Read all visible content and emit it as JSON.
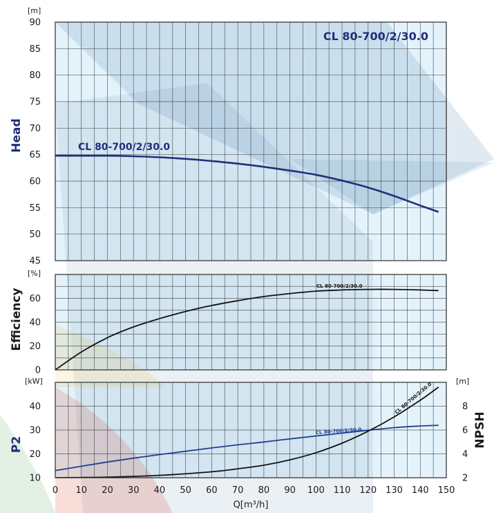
{
  "chart_data": {
    "type": "line",
    "model": "CL 80-700/2/30.0",
    "x_axis": {
      "label": "Q[m³/h]",
      "range": [
        0,
        150
      ],
      "ticks": [
        0,
        10,
        20,
        30,
        40,
        50,
        60,
        70,
        80,
        90,
        100,
        110,
        120,
        130,
        140,
        150
      ]
    },
    "panels": [
      {
        "id": "head",
        "ylabel": "Head",
        "unit": "[m]",
        "ylim": [
          45,
          90
        ],
        "yticks": [
          45,
          50,
          55,
          60,
          65,
          70,
          75,
          80,
          85,
          90
        ],
        "series": [
          {
            "name": "CL 80-700/2/30.0",
            "color": "#1f2f7a",
            "x": [
              0,
              10,
              20,
              30,
              40,
              50,
              60,
              70,
              80,
              90,
              100,
              110,
              120,
              130,
              140,
              147
            ],
            "y": [
              64.8,
              64.8,
              64.8,
              64.7,
              64.5,
              64.2,
              63.8,
              63.3,
              62.7,
              62.0,
              61.2,
              60.1,
              58.8,
              57.2,
              55.4,
              54.2
            ]
          }
        ]
      },
      {
        "id": "efficiency",
        "ylabel": "Efficiency",
        "unit": "[%]",
        "ylim": [
          0,
          80
        ],
        "yticks": [
          0,
          20,
          40,
          60
        ],
        "series": [
          {
            "name": "CL 80-700/2/30.0",
            "color": "#111111",
            "x": [
              0,
              10,
              20,
              30,
              40,
              50,
              60,
              70,
              80,
              90,
              100,
              110,
              120,
              130,
              140,
              147
            ],
            "y": [
              0,
              15,
              27,
              36,
              43,
              49,
              54,
              58,
              61.5,
              64,
              66,
              67,
              67.5,
              67.5,
              67,
              66.5
            ]
          }
        ]
      },
      {
        "id": "power",
        "ylabel": "P2",
        "unit": "[kW]",
        "ylim": [
          10,
          50
        ],
        "yticks": [
          10,
          20,
          30,
          40
        ],
        "right_axis": {
          "label": "NPSH",
          "unit": "[m]",
          "ylim": [
            2,
            10
          ],
          "ticks": [
            2,
            4,
            6,
            8
          ]
        },
        "series": [
          {
            "name": "CL 80-700/2/30.0",
            "axis": "left",
            "color": "#1f3f8f",
            "x": [
              0,
              10,
              20,
              30,
              40,
              50,
              60,
              70,
              80,
              90,
              100,
              110,
              120,
              130,
              140,
              147
            ],
            "y": [
              13.0,
              14.8,
              16.6,
              18.2,
              19.7,
              21.1,
              22.5,
              23.8,
              25.0,
              26.3,
              27.5,
              28.7,
              29.9,
              31.0,
              31.7,
              32.0
            ]
          },
          {
            "name": "CL 80-700/2/30.0",
            "axis": "right",
            "color": "#111111",
            "x": [
              0,
              20,
              40,
              60,
              70,
              80,
              90,
              100,
              110,
              120,
              130,
              140,
              147
            ],
            "y": [
              2.0,
              2.05,
              2.2,
              2.5,
              2.75,
              3.05,
              3.5,
              4.1,
              4.9,
              5.9,
              7.1,
              8.5,
              9.6
            ]
          }
        ]
      }
    ],
    "colors": {
      "plot_bg": "#e4f3fb",
      "grid": "#3a3a3a",
      "watermark_blue": "#1f5e95",
      "watermark_red": "#d24a2a",
      "watermark_yellow": "#e6b82a"
    }
  }
}
